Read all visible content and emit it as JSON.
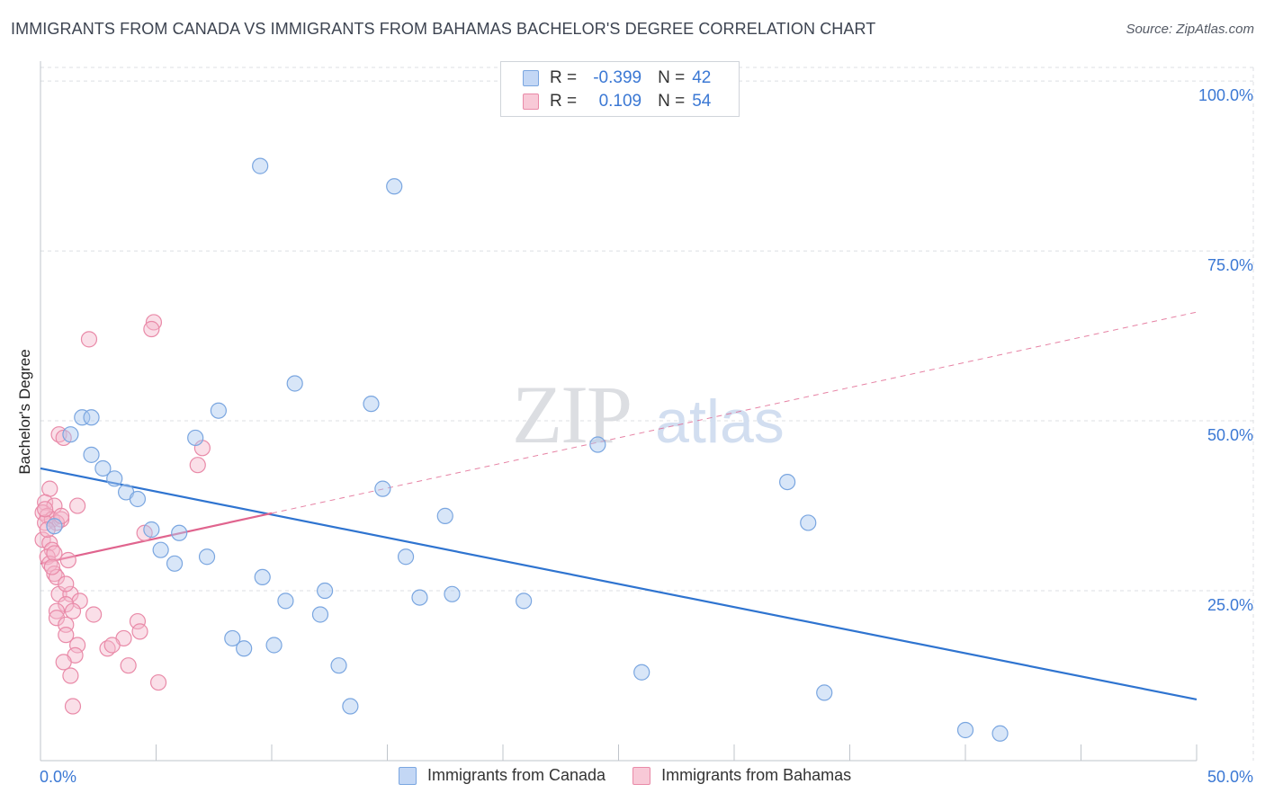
{
  "title": "IMMIGRANTS FROM CANADA VS IMMIGRANTS FROM BAHAMAS BACHELOR'S DEGREE CORRELATION CHART",
  "source": "Source: ZipAtlas.com",
  "watermark": {
    "zip": "ZIP",
    "atlas": "atlas"
  },
  "legend": {
    "r_label": "R =",
    "n_label": "N =",
    "canada": {
      "r": "-0.399",
      "n": "42"
    },
    "bahamas": {
      "r": "0.109",
      "n": "54"
    }
  },
  "chart_data": {
    "type": "scatter",
    "title": "IMMIGRANTS FROM CANADA VS IMMIGRANTS FROM BAHAMAS BACHELOR'S DEGREE CORRELATION CHART",
    "xlabel": "",
    "ylabel": "Bachelor's Degree",
    "xlim": [
      0,
      50
    ],
    "ylim": [
      0,
      102
    ],
    "x_tick_labels": [
      "0.0%",
      "50.0%"
    ],
    "y_ticks": [
      25,
      50,
      75,
      100
    ],
    "y_tick_labels": [
      "25.0%",
      "50.0%",
      "75.0%",
      "100.0%"
    ],
    "colors": {
      "canada_fill": "#a9c7f0",
      "canada_stroke": "#7aa6e0",
      "canada_line": "#2f74d0",
      "bahamas_fill": "#f5b8cb",
      "bahamas_stroke": "#e98aa8",
      "bahamas_line": "#e0648e",
      "axis_text": "#3b78d4",
      "grid": "#dcdfe3"
    },
    "series": [
      {
        "name": "Immigrants from Canada",
        "points": [
          [
            9.5,
            87.5
          ],
          [
            15.3,
            84.5
          ],
          [
            1.8,
            50.5
          ],
          [
            1.3,
            48
          ],
          [
            2.2,
            50.5
          ],
          [
            7.7,
            51.5
          ],
          [
            11.0,
            55.5
          ],
          [
            14.3,
            52.5
          ],
          [
            6.7,
            47.5
          ],
          [
            24.1,
            46.5
          ],
          [
            2.2,
            45
          ],
          [
            2.7,
            43
          ],
          [
            3.2,
            41.5
          ],
          [
            3.7,
            39.5
          ],
          [
            4.2,
            38.5
          ],
          [
            14.8,
            40
          ],
          [
            32.3,
            41
          ],
          [
            17.5,
            36
          ],
          [
            33.2,
            35
          ],
          [
            0.6,
            34.5
          ],
          [
            4.8,
            34
          ],
          [
            6.0,
            33.5
          ],
          [
            5.2,
            31
          ],
          [
            7.2,
            30
          ],
          [
            15.8,
            30
          ],
          [
            5.8,
            29
          ],
          [
            9.6,
            27
          ],
          [
            10.6,
            23.5
          ],
          [
            12.3,
            25
          ],
          [
            16.4,
            24
          ],
          [
            17.8,
            24.5
          ],
          [
            20.9,
            23.5
          ],
          [
            12.1,
            21.5
          ],
          [
            8.3,
            18
          ],
          [
            8.8,
            16.5
          ],
          [
            10.1,
            17
          ],
          [
            12.9,
            14
          ],
          [
            26.0,
            13
          ],
          [
            13.4,
            8
          ],
          [
            33.9,
            10
          ],
          [
            40.0,
            4.5
          ],
          [
            41.5,
            4
          ]
        ],
        "trend": {
          "x0": 0,
          "y0": 43,
          "x1": 50,
          "y1": 9
        }
      },
      {
        "name": "Immigrants from Bahamas",
        "points": [
          [
            4.9,
            64.5
          ],
          [
            4.8,
            63.5
          ],
          [
            2.1,
            62
          ],
          [
            0.8,
            48
          ],
          [
            1.0,
            47.5
          ],
          [
            7.0,
            46
          ],
          [
            6.8,
            43.5
          ],
          [
            0.4,
            40
          ],
          [
            0.2,
            38
          ],
          [
            0.6,
            37.5
          ],
          [
            1.6,
            37.5
          ],
          [
            0.1,
            36.5
          ],
          [
            0.3,
            36
          ],
          [
            0.5,
            35.5
          ],
          [
            0.9,
            35.5
          ],
          [
            0.2,
            35
          ],
          [
            0.7,
            35
          ],
          [
            4.5,
            33.5
          ],
          [
            0.1,
            32.5
          ],
          [
            0.4,
            32
          ],
          [
            0.5,
            31
          ],
          [
            0.3,
            30
          ],
          [
            1.2,
            29.5
          ],
          [
            0.4,
            29
          ],
          [
            0.6,
            27.5
          ],
          [
            0.7,
            27
          ],
          [
            0.8,
            24.5
          ],
          [
            1.3,
            24.5
          ],
          [
            1.7,
            23.5
          ],
          [
            1.1,
            23
          ],
          [
            0.7,
            22
          ],
          [
            1.4,
            22
          ],
          [
            2.3,
            21.5
          ],
          [
            0.7,
            21
          ],
          [
            1.1,
            20
          ],
          [
            4.2,
            20.5
          ],
          [
            4.3,
            19
          ],
          [
            1.1,
            18.5
          ],
          [
            3.6,
            18
          ],
          [
            1.6,
            17
          ],
          [
            2.9,
            16.5
          ],
          [
            3.1,
            17
          ],
          [
            1.5,
            15.5
          ],
          [
            1.0,
            14.5
          ],
          [
            3.8,
            14
          ],
          [
            1.3,
            12.5
          ],
          [
            5.1,
            11.5
          ],
          [
            1.4,
            8
          ],
          [
            0.6,
            30.5
          ],
          [
            0.3,
            34
          ],
          [
            0.9,
            36
          ],
          [
            0.2,
            37
          ],
          [
            1.1,
            26
          ],
          [
            0.5,
            28.5
          ]
        ],
        "trend": {
          "x0": 0,
          "y0": 29,
          "x1": 50,
          "y1": 66
        }
      }
    ]
  }
}
